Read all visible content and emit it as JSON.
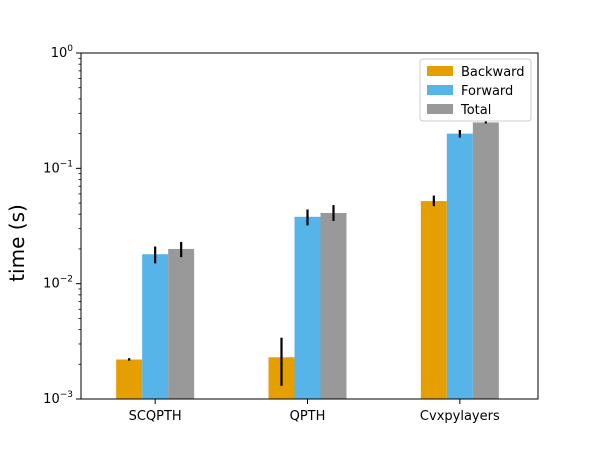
{
  "chart_data": {
    "type": "bar",
    "categories": [
      "SCQPTH",
      "QPTH",
      "Cvxpylayers"
    ],
    "series": [
      {
        "name": "Backward",
        "color": "#E69F00",
        "values": [
          0.0022,
          0.0023,
          0.052
        ],
        "err_low": [
          0.00215,
          0.0013,
          0.047
        ],
        "err_high": [
          0.00226,
          0.0034,
          0.058
        ]
      },
      {
        "name": "Forward",
        "color": "#56B4E9",
        "values": [
          0.018,
          0.038,
          0.2
        ],
        "err_low": [
          0.015,
          0.032,
          0.185
        ],
        "err_high": [
          0.021,
          0.044,
          0.215
        ]
      },
      {
        "name": "Total",
        "color": "#999999",
        "values": [
          0.02,
          0.041,
          0.25
        ],
        "err_low": [
          0.017,
          0.035,
          0.245
        ],
        "err_high": [
          0.023,
          0.048,
          0.256
        ]
      }
    ],
    "ylabel": "time (s)",
    "xlabel": "",
    "yscale": "log",
    "ylim": [
      0.001,
      1
    ],
    "yticks": [
      {
        "base": "10",
        "exp": "0",
        "value": 1
      },
      {
        "base": "10",
        "exp": "−1",
        "value": 0.1
      },
      {
        "base": "10",
        "exp": "−2",
        "value": 0.01
      },
      {
        "base": "10",
        "exp": "−3",
        "value": 0.001
      }
    ],
    "legend_position": "top-right",
    "grid": false
  }
}
